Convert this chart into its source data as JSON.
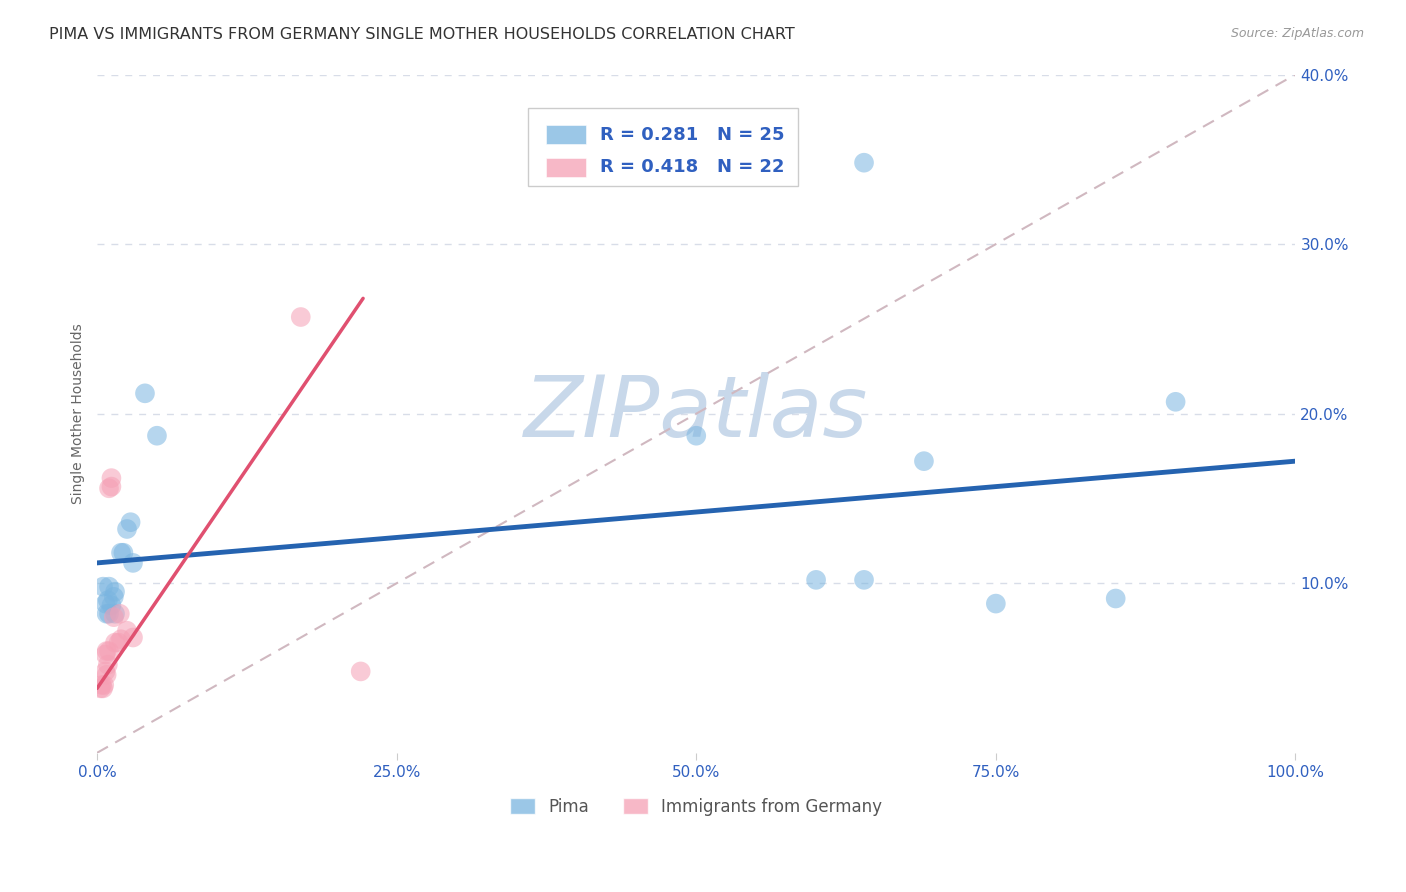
{
  "title": "PIMA VS IMMIGRANTS FROM GERMANY SINGLE MOTHER HOUSEHOLDS CORRELATION CHART",
  "source": "Source: ZipAtlas.com",
  "ylabel": "Single Mother Households",
  "xlim": [
    0.0,
    1.0
  ],
  "ylim": [
    0.0,
    0.4
  ],
  "pima_color": "#7ab5e0",
  "germany_color": "#f5a0b5",
  "pima_line_color": "#2563b0",
  "germany_line_color": "#e05070",
  "diagonal_color": "#d0b8c0",
  "grid_color": "#d8dde8",
  "background_color": "#ffffff",
  "tick_color": "#3060c0",
  "pima_scatter": [
    [
      0.005,
      0.098
    ],
    [
      0.007,
      0.088
    ],
    [
      0.008,
      0.082
    ],
    [
      0.009,
      0.09
    ],
    [
      0.01,
      0.098
    ],
    [
      0.01,
      0.082
    ],
    [
      0.012,
      0.087
    ],
    [
      0.014,
      0.092
    ],
    [
      0.015,
      0.095
    ],
    [
      0.015,
      0.082
    ],
    [
      0.02,
      0.118
    ],
    [
      0.022,
      0.118
    ],
    [
      0.025,
      0.132
    ],
    [
      0.028,
      0.136
    ],
    [
      0.03,
      0.112
    ],
    [
      0.04,
      0.212
    ],
    [
      0.05,
      0.187
    ],
    [
      0.5,
      0.187
    ],
    [
      0.6,
      0.102
    ],
    [
      0.64,
      0.102
    ],
    [
      0.69,
      0.172
    ],
    [
      0.75,
      0.088
    ],
    [
      0.85,
      0.091
    ],
    [
      0.9,
      0.207
    ],
    [
      0.64,
      0.348
    ]
  ],
  "germany_scatter": [
    [
      0.003,
      0.038
    ],
    [
      0.004,
      0.04
    ],
    [
      0.005,
      0.038
    ],
    [
      0.006,
      0.04
    ],
    [
      0.007,
      0.048
    ],
    [
      0.007,
      0.058
    ],
    [
      0.008,
      0.046
    ],
    [
      0.008,
      0.06
    ],
    [
      0.009,
      0.052
    ],
    [
      0.01,
      0.06
    ],
    [
      0.01,
      0.156
    ],
    [
      0.012,
      0.162
    ],
    [
      0.012,
      0.157
    ],
    [
      0.014,
      0.08
    ],
    [
      0.015,
      0.065
    ],
    [
      0.018,
      0.065
    ],
    [
      0.019,
      0.082
    ],
    [
      0.02,
      0.067
    ],
    [
      0.025,
      0.072
    ],
    [
      0.03,
      0.068
    ],
    [
      0.17,
      0.257
    ],
    [
      0.22,
      0.048
    ]
  ],
  "pima_trend": [
    0.0,
    1.0,
    0.112,
    0.172
  ],
  "germany_trend": [
    0.0,
    0.222,
    0.038,
    0.268
  ],
  "diagonal": [
    0.0,
    1.0,
    0.0,
    0.4
  ],
  "xticks": [
    0.0,
    0.25,
    0.5,
    0.75,
    1.0
  ],
  "xticklabels": [
    "0.0%",
    "25.0%",
    "50.0%",
    "75.0%",
    "100.0%"
  ],
  "yticks": [
    0.1,
    0.2,
    0.3,
    0.4
  ],
  "yticklabels": [
    "10.0%",
    "20.0%",
    "30.0%",
    "40.0%"
  ],
  "watermark": "ZIPatlas",
  "watermark_color": "#c8d8ea",
  "watermark_fontsize": 62,
  "title_fontsize": 11.5,
  "tick_fontsize": 11,
  "ylabel_fontsize": 10,
  "legend_r_n": [
    "R = 0.281   N = 25",
    "R = 0.418   N = 22"
  ],
  "bottom_legend_labels": [
    "Pima",
    "Immigrants from Germany"
  ],
  "scatter_size": 200,
  "scatter_alpha": 0.55
}
